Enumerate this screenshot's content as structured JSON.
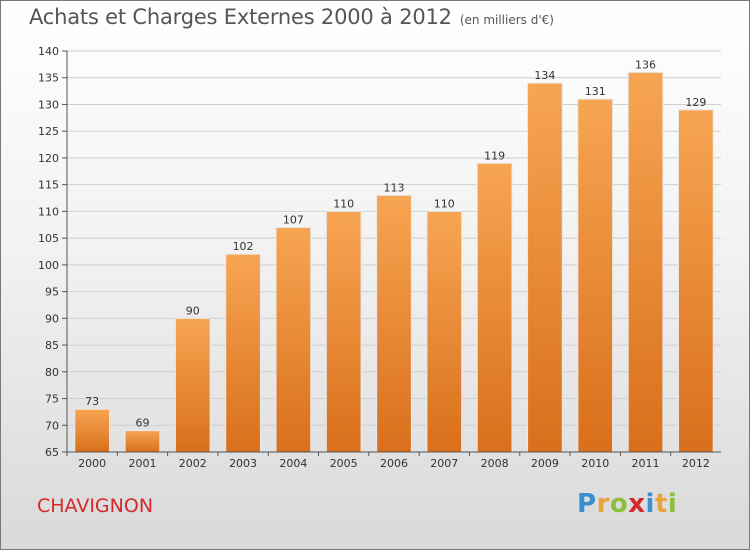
{
  "title": "Achats et Charges Externes 2000 à 2012",
  "subtitle": "(en milliers d'€)",
  "commune": "CHAVIGNON",
  "logo": {
    "text": "Proxiti",
    "letter_colors": [
      "#3a8fd0",
      "#e8a33c",
      "#8bbf3a",
      "#d4292c",
      "#3a8fd0",
      "#e8a33c",
      "#8bbf3a"
    ]
  },
  "colors": {
    "bar_top": "#f7a552",
    "bar_bottom": "#d96f1c",
    "grid": "#cfcfcf",
    "commune_text": "#d4292c"
  },
  "chart_data": {
    "type": "bar",
    "title": "Achats et Charges Externes 2000 à 2012",
    "subtitle": "(en milliers d'€)",
    "categories": [
      "2000",
      "2001",
      "2002",
      "2003",
      "2004",
      "2005",
      "2006",
      "2007",
      "2008",
      "2009",
      "2010",
      "2011",
      "2012"
    ],
    "values": [
      73,
      69,
      90,
      102,
      107,
      110,
      113,
      110,
      119,
      134,
      131,
      136,
      129
    ],
    "ylim": [
      65,
      140
    ],
    "yticks": [
      65,
      70,
      75,
      80,
      85,
      90,
      95,
      100,
      105,
      110,
      115,
      120,
      125,
      130,
      135,
      140
    ],
    "grid": true,
    "xlabel": "",
    "ylabel": ""
  }
}
